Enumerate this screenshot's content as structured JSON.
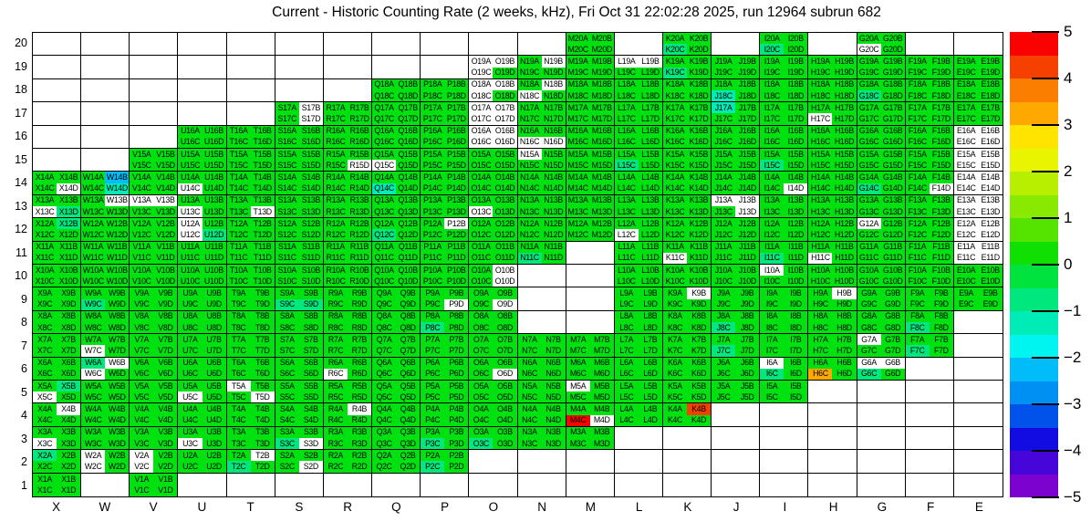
{
  "title": "Current - Historic Counting Rate (2 weeks, kHz), Fri Oct 31 22:02:28 2025, run 12964 subrun 682",
  "palette": {
    "G": "#00e20f",
    "T": "#00e77e",
    "C": "#00ecb6",
    "Z": "#00bcf8",
    "W": "#ffffff",
    "O": "#ffa800",
    "R": "#fa0202",
    "K": "#f64000"
  },
  "colorbar": {
    "min": -5,
    "max": 5,
    "tick_labels": [
      "5",
      "4",
      "3",
      "2",
      "1",
      "0",
      "−1",
      "−2",
      "−3",
      "−4",
      "−5"
    ],
    "band_colors": [
      "#fa0202",
      "#f64000",
      "#fb7e00",
      "#ffa800",
      "#ffe400",
      "#e9f500",
      "#b8ef00",
      "#8ae900",
      "#55e300",
      "#0fe002",
      "#00e23e",
      "#00e77e",
      "#00ecb6",
      "#00f4f0",
      "#00bcf8",
      "#0090f3",
      "#0052ea",
      "#120be2",
      "#4606d9",
      "#7b02cf"
    ]
  },
  "chart_data": {
    "type": "heatmap",
    "title": "Current - Historic Counting Rate (2 weeks, kHz), Fri Oct 31 22:02:28 2025, run 12964 subrun 682",
    "value_units": "kHz",
    "value_range": [
      -5,
      5
    ],
    "columns": [
      "X",
      "W",
      "V",
      "U",
      "T",
      "S",
      "R",
      "Q",
      "P",
      "O",
      "N",
      "M",
      "L",
      "K",
      "J",
      "I",
      "H",
      "G",
      "F",
      "E"
    ],
    "rows": [
      20,
      19,
      18,
      17,
      16,
      15,
      14,
      13,
      12,
      11,
      10,
      9,
      8,
      7,
      6,
      5,
      4,
      3,
      2,
      1
    ],
    "quadrant_suffixes": [
      "A",
      "B",
      "C",
      "D"
    ],
    "color_legend": {
      "G": "~0 to 1 (green)",
      "T": "~-0.5 to -1 (spring green)",
      "C": "~-1 to -1.5 (teal)",
      "Z": "~-2 to -2.5 (azure)",
      "W": "no data (white)",
      "O": "~3.5 (orange)",
      "R": "~5 (red)",
      "K": "~4.5 (red-orange)"
    },
    "cells": [
      [
        null,
        null,
        null,
        null,
        null,
        null,
        null,
        null,
        null,
        null,
        null,
        "GGGG",
        null,
        "GGTG",
        null,
        "GGTG",
        null,
        "GGWG",
        null,
        null
      ],
      [
        null,
        null,
        null,
        null,
        null,
        null,
        null,
        null,
        null,
        "WWWG",
        "GWGG",
        "GGGG",
        "WWGG",
        "GGTG",
        "GGGG",
        "GGGG",
        "GGGG",
        "GGGG",
        "GGGG",
        "GGGG"
      ],
      [
        null,
        null,
        null,
        null,
        null,
        null,
        null,
        "GGGG",
        "GGGG",
        "WWWG",
        "GWWG",
        "GGGG",
        "GGGG",
        "GGGG",
        "GGCG",
        "GGGG",
        "GGGG",
        "GGTG",
        "GGGG",
        "GGGG"
      ],
      [
        null,
        null,
        null,
        null,
        null,
        "GWGW",
        "GGGG",
        "GGGG",
        "GGGG",
        "WWWW",
        "GGGG",
        "GGGG",
        "GGGG",
        "GGGG",
        "CGGG",
        "GGGG",
        "GGWG",
        "GGGG",
        "GGGG",
        "GGGG"
      ],
      [
        null,
        null,
        null,
        "GGGG",
        "GGGG",
        "GGGG",
        "GGGG",
        "GGGG",
        "GGGG",
        "WWWW",
        "GGWW",
        "GGGG",
        "GGGG",
        "GGGG",
        "GGGG",
        "GGGG",
        "GGGG",
        "GGGG",
        "GGGG",
        "WWWW"
      ],
      [
        null,
        null,
        "GGGG",
        "GGGG",
        "GGGG",
        "GGGG",
        "GGGW",
        "GGWG",
        "GGGG",
        "GGGG",
        "WGGG",
        "GGGG",
        "GGTG",
        "GGGG",
        "GGGG",
        "GGTG",
        "GGGG",
        "GGGG",
        "GGGG",
        "WWWW"
      ],
      [
        "GGGW",
        "GZGC",
        "GGGG",
        "GGWG",
        "GGGG",
        "GGGG",
        "GGGG",
        "GGCG",
        "GGGG",
        "GGGG",
        "GGGG",
        "GGGG",
        "GGGG",
        "GGGG",
        "GGGG",
        "GGGW",
        "GGGG",
        "GGTG",
        "GGGW",
        "WWWW"
      ],
      [
        "GGWT",
        "GWGG",
        "WWGG",
        "GGWG",
        "GGGW",
        "GGGG",
        "GGGG",
        "GGGG",
        "GGGG",
        "GGWG",
        "GGGG",
        "GGGG",
        "GGGG",
        "GGGG",
        "WWGW",
        "GGGG",
        "GGGG",
        "GGGG",
        "GGGG",
        "WWWW"
      ],
      [
        "GTGG",
        "GGGG",
        "GGGG",
        "WGWT",
        "GGGG",
        "GGGG",
        "GGGG",
        "GGTG",
        "GWGG",
        "GGGG",
        "GGGG",
        "GGGG",
        "GGWG",
        "GGGG",
        "GGGG",
        "GGGG",
        "GGGG",
        "WGGG",
        "GGGG",
        "WWWW"
      ],
      [
        "GGGG",
        "GGGG",
        "GGGG",
        "GGGG",
        "GGGG",
        "GGGG",
        "GGGG",
        "GGGG",
        "GGGG",
        "GGGG",
        "GGTG",
        null,
        "GGGG",
        "GGWG",
        "GGGG",
        "GGTG",
        "GGWG",
        "GGGG",
        "GGGG",
        "WWWW"
      ],
      [
        "GGGG",
        "GGGG",
        "GGGG",
        "GGGG",
        "GGGG",
        "GGGG",
        "GGGG",
        "GGGG",
        "GGGG",
        "GWGW",
        null,
        null,
        "GGGG",
        "GGGG",
        "GGGG",
        "WGGG",
        "GGGG",
        "GGGG",
        "GGGG",
        "GGGG"
      ],
      [
        "GGGG",
        "GGTG",
        "GGGG",
        "GGGG",
        "GGGG",
        "GGTT",
        "GGGG",
        "GGGG",
        "GGGW",
        "GGGW",
        null,
        null,
        "GGGG",
        "GWGG",
        "GGGG",
        "GGGG",
        "GWGG",
        "GGGG",
        "GGGG",
        "GGGG"
      ],
      [
        "GGGG",
        "GGGG",
        "GGGG",
        "GGGG",
        "GGGG",
        "GGGG",
        "GGGG",
        "GGGG",
        "GGTG",
        "GGGG",
        null,
        null,
        "GGGG",
        "GGGG",
        "GGTG",
        "GGGG",
        "GGGG",
        "GGGG",
        "GGTG",
        null
      ],
      [
        "GGGG",
        "GGWG",
        "GGGG",
        "GGGG",
        "GGGG",
        "GGGG",
        "GGGG",
        "GGGG",
        "GGGG",
        "GGGG",
        "GGGG",
        "GGGG",
        "GGGG",
        "GGGG",
        "GGTG",
        "GGGG",
        "GGGG",
        "WGGG",
        "GGTG",
        null
      ],
      [
        "GGGG",
        "TWWG",
        "GGGG",
        "GGGG",
        "GGGG",
        "GGGG",
        "GGWG",
        "GGGG",
        "GGGG",
        "GGGW",
        "GGGG",
        "GGGG",
        "GGGG",
        "GGGG",
        "GGGG",
        "WGTG",
        "GGOG",
        "WWTG",
        null,
        null
      ],
      [
        "GTWG",
        "GGGG",
        "GGGG",
        "GGWG",
        "WGGW",
        "GGGG",
        "GGGG",
        "GGGG",
        "GGGG",
        "GGGG",
        "GGGG",
        "WGGG",
        "GGGG",
        "GGGG",
        "GGGG",
        "GGGG",
        null,
        null,
        null,
        null
      ],
      [
        "GWGG",
        "GGGG",
        "GGGG",
        "GGGG",
        "GGGG",
        "GGGG",
        "GWGG",
        "GGGG",
        "GGGG",
        "GGGG",
        "GGGG",
        "GGRW",
        "GGGG",
        "GKGG",
        null,
        null,
        null,
        null,
        null,
        null
      ],
      [
        "GGWG",
        "GGGG",
        "GGGG",
        "GGWG",
        "GGGG",
        "GGTW",
        "GGGG",
        "GGGG",
        "GGTG",
        "GGTG",
        "GGGG",
        "GGGG",
        null,
        null,
        null,
        null,
        null,
        null,
        null,
        null
      ],
      [
        "TGGG",
        "WGWG",
        "WGWG",
        "GGGG",
        "GWTG",
        "GGGW",
        "GGGG",
        "GGGG",
        "GGTG",
        null,
        null,
        null,
        null,
        null,
        null,
        null,
        null,
        null,
        null,
        null
      ],
      [
        "GGGG",
        null,
        "GGGG",
        null,
        null,
        null,
        null,
        null,
        null,
        null,
        null,
        null,
        null,
        null,
        null,
        null,
        null,
        null,
        null,
        null
      ]
    ]
  }
}
